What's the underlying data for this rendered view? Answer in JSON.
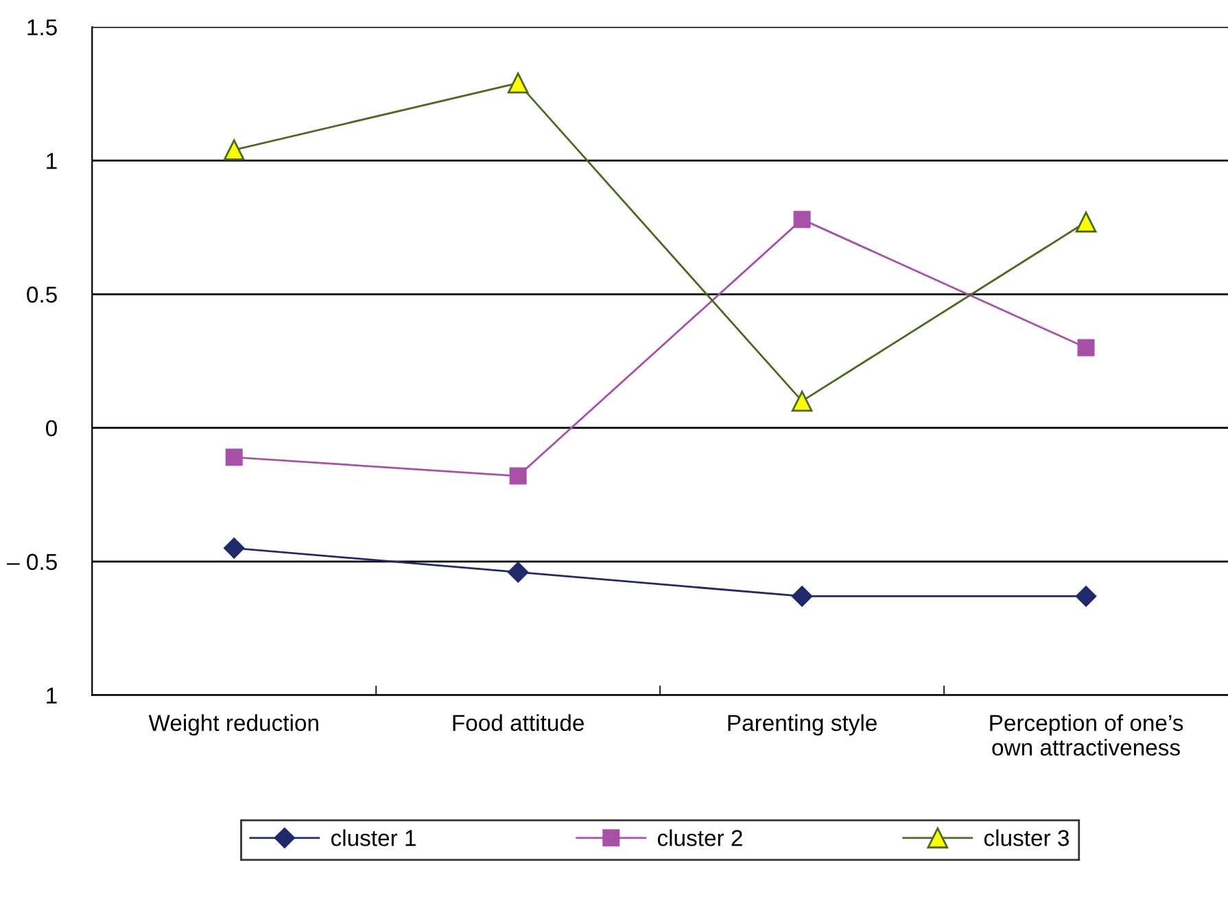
{
  "chart_data": {
    "type": "line",
    "categories": [
      "Weight reduction",
      "Food attitude",
      "Parenting style",
      "Perception of one’s\nown attractiveness"
    ],
    "series": [
      {
        "name": "cluster 1",
        "color": "#1f2a6b",
        "marker": "diamond",
        "values": [
          -0.45,
          -0.54,
          -0.63,
          -0.63
        ]
      },
      {
        "name": "cluster 2",
        "color": "#a850a8",
        "marker": "square",
        "values": [
          -0.11,
          -0.18,
          0.78,
          0.3
        ]
      },
      {
        "name": "cluster 3",
        "color": "#4a6a1e",
        "marker": "triangle",
        "values": [
          1.04,
          1.29,
          0.1,
          0.77
        ]
      }
    ],
    "ylim": [
      -1,
      1.5
    ],
    "yticks": [
      {
        "value": -1,
        "label": "1"
      },
      {
        "value": -0.5,
        "label": "– 0.5"
      },
      0,
      0.5,
      1,
      1.5
    ],
    "grid": "y",
    "legend": "bottom",
    "line_style": "solid"
  }
}
